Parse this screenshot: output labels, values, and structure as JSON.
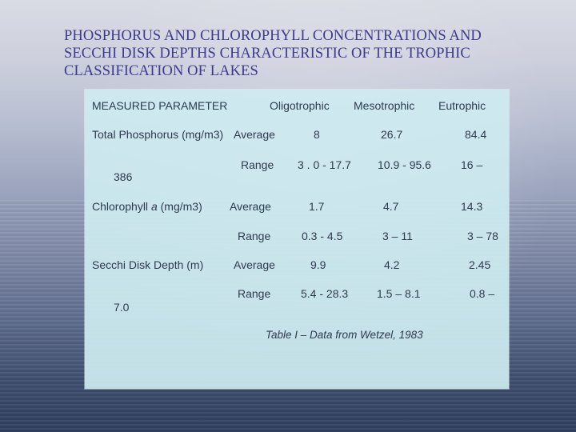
{
  "title": {
    "line1": "PHOSPHORUS AND CHLOROPHYLL CONCENTRATIONS AND",
    "line2": "SECCHI DISK DEPTHS CHARACTERISTIC OF THE TROPHIC",
    "line3": "CLASSIFICATION OF LAKES"
  },
  "table": {
    "headers": {
      "parameter": "MEASURED PARAMETER",
      "oligotrophic": "Oligotrophic",
      "mesotrophic": "Mesotrophic",
      "eutrophic": "Eutrophic"
    },
    "rows": [
      {
        "parameter": "Total Phosphorus (mg/m3)",
        "stats": [
          {
            "label": "Average",
            "oligotrophic": "8",
            "mesotrophic": "26.7",
            "eutrophic": "84.4"
          },
          {
            "label": "Range",
            "oligotrophic": "3 . 0 - 17.7",
            "mesotrophic": "10.9 - 95.6",
            "eutrophic": "16 –",
            "eutrophic_cont": "386"
          }
        ]
      },
      {
        "parameter_prefix": "Chlorophyll ",
        "parameter_italic": "a",
        "parameter_suffix": " (mg/m3)",
        "stats": [
          {
            "label": "Average",
            "oligotrophic": "1.7",
            "mesotrophic": "4.7",
            "eutrophic": "14.3"
          },
          {
            "label": "Range",
            "oligotrophic": "0.3 - 4.5",
            "mesotrophic": "3 – 11",
            "eutrophic": "3 – 78"
          }
        ]
      },
      {
        "parameter": "Secchi Disk Depth (m)",
        "stats": [
          {
            "label": "Average",
            "oligotrophic": "9.9",
            "mesotrophic": "4.2",
            "eutrophic": "2.45"
          },
          {
            "label": "Range",
            "oligotrophic": "5.4 - 28.3",
            "mesotrophic": "1.5 – 8.1",
            "eutrophic": "0.8 –",
            "eutrophic_cont": "7.0"
          }
        ]
      }
    ],
    "caption": "Table I – Data from Wetzel, 1983"
  },
  "colors": {
    "title": "#3b3a8c",
    "text": "#2e3a4e",
    "panel": "#cdebf0"
  }
}
